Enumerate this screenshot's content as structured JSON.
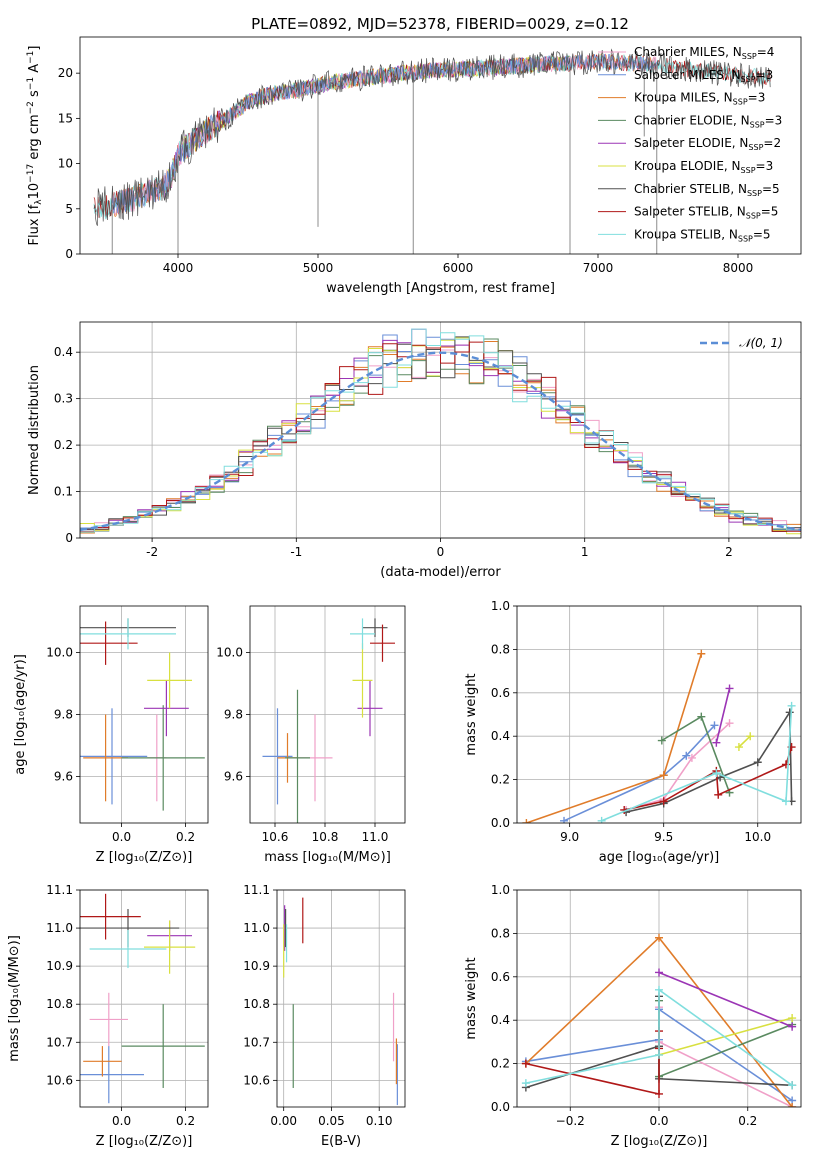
{
  "figure": {
    "title": "PLATE=0892, MJD=52378, FIBERID=0029, z=0.12",
    "colors": {
      "Chabrier MILES": "#f0a0c8",
      "Salpeter MILES": "#6a8fd8",
      "Kroupa MILES": "#e07c2a",
      "Chabrier ELODIE": "#5a8a60",
      "Salpeter ELODIE": "#9b35b5",
      "Kroupa ELODIE": "#d8e040",
      "Chabrier STELIB": "#505050",
      "Salpeter STELIB": "#b01818",
      "Kroupa STELIB": "#80dede"
    }
  },
  "chart_data": [
    {
      "id": "spectrum",
      "type": "line",
      "xlabel": "wavelength [Angstrom, rest frame]",
      "ylabel": "Flux [f",
      "ylabel_parts": [
        "Flux [f",
        "λ",
        "10",
        "−17",
        " erg cm",
        "−2",
        " s",
        "−1",
        " A",
        "−1",
        "]"
      ],
      "xlim": [
        3300,
        8450
      ],
      "ylim": [
        0,
        24
      ],
      "xticks": [
        4000,
        5000,
        6000,
        7000,
        8000
      ],
      "yticks": [
        0,
        5,
        10,
        15,
        20
      ],
      "grid": false,
      "legend_position": "right",
      "legend": [
        {
          "model": "Chabrier MILES",
          "label": "Chabrier MILES, N",
          "sub": "SSP",
          "suffix": "=4"
        },
        {
          "model": "Salpeter MILES",
          "label": "Salpeter MILES, N",
          "sub": "SSP",
          "suffix": "=3"
        },
        {
          "model": "Kroupa MILES",
          "label": "Kroupa MILES, N",
          "sub": "SSP",
          "suffix": "=3"
        },
        {
          "model": "Chabrier ELODIE",
          "label": "Chabrier ELODIE, N",
          "sub": "SSP",
          "suffix": "=3"
        },
        {
          "model": "Salpeter ELODIE",
          "label": "Salpeter ELODIE, N",
          "sub": "SSP",
          "suffix": "=2"
        },
        {
          "model": "Kroupa ELODIE",
          "label": "Kroupa ELODIE, N",
          "sub": "SSP",
          "suffix": "=3"
        },
        {
          "model": "Chabrier STELIB",
          "label": "Chabrier STELIB, N",
          "sub": "SSP",
          "suffix": "=5"
        },
        {
          "model": "Salpeter STELIB",
          "label": "Salpeter STELIB, N",
          "sub": "SSP",
          "suffix": "=5"
        },
        {
          "model": "Kroupa STELIB",
          "label": "Kroupa STELIB, N",
          "sub": "SSP",
          "suffix": "=5"
        }
      ],
      "continuum": [
        [
          3400,
          5.2
        ],
        [
          3500,
          5.3
        ],
        [
          3600,
          5.8
        ],
        [
          3700,
          6.2
        ],
        [
          3800,
          6.8
        ],
        [
          3900,
          7.4
        ],
        [
          3950,
          8.5
        ],
        [
          4000,
          11.0
        ],
        [
          4100,
          12.4
        ],
        [
          4200,
          13.6
        ],
        [
          4300,
          14.6
        ],
        [
          4400,
          15.6
        ],
        [
          4500,
          16.8
        ],
        [
          4600,
          17.4
        ],
        [
          4700,
          17.8
        ],
        [
          4800,
          18.0
        ],
        [
          4900,
          18.3
        ],
        [
          5000,
          18.6
        ],
        [
          5100,
          19.0
        ],
        [
          5200,
          19.2
        ],
        [
          5300,
          19.4
        ],
        [
          5400,
          19.6
        ],
        [
          5500,
          19.8
        ],
        [
          5600,
          20.0
        ],
        [
          5800,
          20.3
        ],
        [
          6000,
          20.4
        ],
        [
          6200,
          20.6
        ],
        [
          6400,
          20.8
        ],
        [
          6600,
          21.0
        ],
        [
          6800,
          21.1
        ],
        [
          7000,
          21.3
        ],
        [
          7200,
          21.1
        ],
        [
          7400,
          21.0
        ],
        [
          7600,
          20.5
        ],
        [
          7800,
          20.1
        ],
        [
          8000,
          19.8
        ],
        [
          8200,
          19.5
        ]
      ],
      "spikes": [
        [
          3530,
          0
        ],
        [
          4000,
          0
        ],
        [
          5000,
          3
        ],
        [
          5680,
          0
        ],
        [
          6800,
          0
        ],
        [
          7420,
          0
        ],
        [
          7330,
          13
        ]
      ]
    },
    {
      "id": "residuals",
      "type": "histogram",
      "xlabel": "(data-model)/error",
      "ylabel": "Normed distribution",
      "xlim": [
        -2.5,
        2.5
      ],
      "ylim": [
        0,
        0.465
      ],
      "xticks": [
        -2,
        -1,
        0,
        1,
        2
      ],
      "yticks": [
        0.0,
        0.1,
        0.2,
        0.3,
        0.4
      ],
      "grid": true,
      "legend_position": "top-right",
      "reference_label": "𝒩(0, 1)",
      "bins": 50
    },
    {
      "id": "age_vs_Z",
      "type": "scatter",
      "xlabel": "Z [log₁₀(Z/Z⊙)]",
      "ylabel": "age  [log₁₀(age/yr)]",
      "xlim": [
        -0.13,
        0.27
      ],
      "ylim": [
        9.45,
        10.15
      ],
      "xticks": [
        0.0,
        0.2
      ],
      "xticklabels": [
        "0.0",
        "0.2"
      ],
      "yticks": [
        9.6,
        9.8,
        10.0
      ],
      "yticklabels": [
        "9.6",
        "9.8",
        "10.0"
      ],
      "grid": true,
      "points": [
        {
          "model": "Chabrier MILES",
          "x": 0.11,
          "y": 9.66,
          "xe": 0.03,
          "ye": 0.14
        },
        {
          "model": "Salpeter MILES",
          "x": -0.03,
          "y": 9.665,
          "xe": 0.11,
          "ye": 0.155
        },
        {
          "model": "Kroupa MILES",
          "x": -0.05,
          "y": 9.66,
          "xe": 0.07,
          "ye": 0.14
        },
        {
          "model": "Chabrier ELODIE",
          "x": 0.13,
          "y": 9.66,
          "xe": 0.13,
          "ye": 0.17
        },
        {
          "model": "Salpeter ELODIE",
          "x": 0.14,
          "y": 9.82,
          "xe": 0.07,
          "ye": 0.09
        },
        {
          "model": "Kroupa ELODIE",
          "x": 0.15,
          "y": 9.91,
          "xe": 0.07,
          "ye": 0.09
        },
        {
          "model": "Chabrier STELIB",
          "x": 0.02,
          "y": 10.08,
          "xe": 0.15,
          "ye": 0.03
        },
        {
          "model": "Salpeter STELIB",
          "x": -0.05,
          "y": 10.03,
          "xe": 0.1,
          "ye": 0.07
        },
        {
          "model": "Kroupa STELIB",
          "x": 0.02,
          "y": 10.06,
          "xe": 0.15,
          "ye": 0.05
        }
      ]
    },
    {
      "id": "age_vs_mass",
      "type": "scatter",
      "xlabel": "mass [log₁₀(M/M⊙)]",
      "ylabel": "",
      "xlim": [
        10.5,
        11.12
      ],
      "ylim": [
        9.45,
        10.15
      ],
      "xticks": [
        10.6,
        10.8,
        11.0
      ],
      "xticklabels": [
        "10.6",
        "10.8",
        "11.0"
      ],
      "yticks": [
        9.6,
        9.8,
        10.0
      ],
      "yticklabels": [
        "9.6",
        "9.8",
        "10.0"
      ],
      "grid": true,
      "points": [
        {
          "model": "Chabrier MILES",
          "x": 10.76,
          "y": 9.66,
          "xe": 0.07,
          "ye": 0.14
        },
        {
          "model": "Salpeter MILES",
          "x": 10.61,
          "y": 9.665,
          "xe": 0.06,
          "ye": 0.155
        },
        {
          "model": "Kroupa MILES",
          "x": 10.65,
          "y": 9.66,
          "xe": 0.04,
          "ye": 0.08
        },
        {
          "model": "Chabrier ELODIE",
          "x": 10.69,
          "y": 9.66,
          "xe": 0.05,
          "ye": 0.22
        },
        {
          "model": "Salpeter ELODIE",
          "x": 10.98,
          "y": 9.82,
          "xe": 0.05,
          "ye": 0.09
        },
        {
          "model": "Kroupa ELODIE",
          "x": 10.95,
          "y": 9.91,
          "xe": 0.04,
          "ye": 0.12
        },
        {
          "model": "Chabrier STELIB",
          "x": 11.0,
          "y": 10.08,
          "xe": 0.05,
          "ye": 0.03
        },
        {
          "model": "Salpeter STELIB",
          "x": 11.03,
          "y": 10.03,
          "xe": 0.05,
          "ye": 0.06
        },
        {
          "model": "Kroupa STELIB",
          "x": 10.95,
          "y": 10.06,
          "xe": 0.05,
          "ye": 0.05
        }
      ]
    },
    {
      "id": "mass_weight_vs_age",
      "type": "line",
      "xlabel": "age  [log₁₀(age/yr)]",
      "ylabel": "mass weight",
      "xlim": [
        8.72,
        10.23
      ],
      "ylim": [
        0,
        1
      ],
      "xticks": [
        9.0,
        9.5,
        10.0
      ],
      "xticklabels": [
        "9.0",
        "9.5",
        "10.0"
      ],
      "yticks": [
        0.0,
        0.2,
        0.4,
        0.6,
        0.8,
        1.0
      ],
      "yticklabels": [
        "0.0",
        "0.2",
        "0.4",
        "0.6",
        "0.8",
        "1.0"
      ],
      "grid": true,
      "series": [
        {
          "model": "Chabrier MILES",
          "x": [
            9.3,
            9.5,
            9.65,
            9.85
          ],
          "y": [
            0.06,
            0.11,
            0.3,
            0.46
          ]
        },
        {
          "model": "Salpeter MILES",
          "x": [
            8.97,
            9.5,
            9.62,
            9.77
          ],
          "y": [
            0.01,
            0.22,
            0.31,
            0.45
          ]
        },
        {
          "model": "Kroupa MILES",
          "x": [
            8.77,
            9.5,
            9.7
          ],
          "y": [
            0.0,
            0.22,
            0.78
          ]
        },
        {
          "model": "Chabrier ELODIE",
          "x": [
            9.49,
            9.7,
            9.85
          ],
          "y": [
            0.38,
            0.49,
            0.14
          ]
        },
        {
          "model": "Salpeter ELODIE",
          "x": [
            9.78,
            9.85
          ],
          "y": [
            0.37,
            0.62
          ]
        },
        {
          "model": "Kroupa ELODIE",
          "x": [
            9.9,
            9.96
          ],
          "y": [
            0.35,
            0.4
          ]
        },
        {
          "model": "Chabrier STELIB",
          "x": [
            9.3,
            9.5,
            9.8,
            10.0,
            10.17,
            10.18
          ],
          "y": [
            0.05,
            0.09,
            0.21,
            0.28,
            0.51,
            0.1
          ]
        },
        {
          "model": "Salpeter STELIB",
          "x": [
            9.29,
            9.5,
            9.78,
            9.79,
            10.15,
            10.18
          ],
          "y": [
            0.06,
            0.1,
            0.24,
            0.13,
            0.27,
            0.35
          ]
        },
        {
          "model": "Kroupa STELIB",
          "x": [
            9.17,
            9.78,
            10.15,
            10.18
          ],
          "y": [
            0.01,
            0.23,
            0.1,
            0.54
          ]
        }
      ]
    },
    {
      "id": "mass_vs_Z",
      "type": "scatter",
      "xlabel": "Z [log₁₀(Z/Z⊙)]",
      "ylabel": "mass [log₁₀(M/M⊙)]",
      "xlim": [
        -0.13,
        0.27
      ],
      "ylim": [
        10.53,
        11.1
      ],
      "xticks": [
        0.0,
        0.2
      ],
      "xticklabels": [
        "0.0",
        "0.2"
      ],
      "yticks": [
        10.6,
        10.7,
        10.8,
        10.9,
        11.0,
        11.1
      ],
      "yticklabels": [
        "10.6",
        "10.7",
        "10.8",
        "10.9",
        "11.0",
        "11.1"
      ],
      "grid": true,
      "points": [
        {
          "model": "Chabrier MILES",
          "x": -0.04,
          "y": 10.76,
          "xe": 0.06,
          "ye": 0.07
        },
        {
          "model": "Salpeter MILES",
          "x": -0.04,
          "y": 10.615,
          "xe": 0.11,
          "ye": 0.075
        },
        {
          "model": "Kroupa MILES",
          "x": -0.06,
          "y": 10.65,
          "xe": 0.06,
          "ye": 0.04
        },
        {
          "model": "Chabrier ELODIE",
          "x": 0.13,
          "y": 10.69,
          "xe": 0.13,
          "ye": 0.11
        },
        {
          "model": "Salpeter ELODIE",
          "x": 0.15,
          "y": 10.98,
          "xe": 0.07,
          "ye": 0.04
        },
        {
          "model": "Kroupa ELODIE",
          "x": 0.15,
          "y": 10.95,
          "xe": 0.08,
          "ye": 0.07
        },
        {
          "model": "Chabrier STELIB",
          "x": 0.02,
          "y": 11.0,
          "xe": 0.16,
          "ye": 0.05
        },
        {
          "model": "Salpeter STELIB",
          "x": -0.05,
          "y": 11.03,
          "xe": 0.11,
          "ye": 0.06
        },
        {
          "model": "Kroupa STELIB",
          "x": 0.02,
          "y": 10.945,
          "xe": 0.12,
          "ye": 0.05
        }
      ]
    },
    {
      "id": "mass_vs_ebv",
      "type": "scatter",
      "xlabel": "E(B-V)",
      "ylabel": "",
      "xlim": [
        -0.007,
        0.127
      ],
      "ylim": [
        10.53,
        11.1
      ],
      "xticks": [
        0.0,
        0.05,
        0.1
      ],
      "xticklabels": [
        "0.00",
        "0.05",
        "0.10"
      ],
      "yticks": [
        10.6,
        10.7,
        10.8,
        10.9,
        11.0,
        11.1
      ],
      "yticklabels": [
        "10.6",
        "10.7",
        "10.8",
        "10.9",
        "11.0",
        "11.1"
      ],
      "grid": true,
      "points": [
        {
          "model": "Chabrier MILES",
          "x": 0.115,
          "y": 10.74,
          "xe": 0,
          "ye": 0.09
        },
        {
          "model": "Salpeter MILES",
          "x": 0.119,
          "y": 10.615,
          "xe": 0,
          "ye": 0.08
        },
        {
          "model": "Kroupa MILES",
          "x": 0.118,
          "y": 10.65,
          "xe": 0,
          "ye": 0.06
        },
        {
          "model": "Chabrier ELODIE",
          "x": 0.01,
          "y": 10.69,
          "xe": 0,
          "ye": 0.11
        },
        {
          "model": "Salpeter ELODIE",
          "x": 0.001,
          "y": 11.0,
          "xe": 0,
          "ye": 0.06
        },
        {
          "model": "Kroupa ELODIE",
          "x": 0.0,
          "y": 10.94,
          "xe": 0,
          "ye": 0.07
        },
        {
          "model": "Chabrier STELIB",
          "x": 0.002,
          "y": 11.0,
          "xe": 0,
          "ye": 0.05
        },
        {
          "model": "Salpeter STELIB",
          "x": 0.02,
          "y": 11.02,
          "xe": 0,
          "ye": 0.06
        },
        {
          "model": "Kroupa STELIB",
          "x": 0.003,
          "y": 10.96,
          "xe": 0,
          "ye": 0.05
        }
      ]
    },
    {
      "id": "mass_weight_vs_Z",
      "type": "line",
      "xlabel": "Z [log₁₀(Z/Z⊙)]",
      "ylabel": "mass weight",
      "xlim": [
        -0.32,
        0.32
      ],
      "ylim": [
        0,
        1
      ],
      "xticks": [
        -0.2,
        0.0,
        0.2
      ],
      "xticklabels": [
        "−0.2",
        "0.0",
        "0.2"
      ],
      "yticks": [
        0.0,
        0.2,
        0.4,
        0.6,
        0.8,
        1.0
      ],
      "yticklabels": [
        "0.0",
        "0.2",
        "0.4",
        "0.6",
        "0.8",
        "1.0"
      ],
      "grid": true,
      "series": [
        {
          "model": "Chabrier MILES",
          "x": [
            0.0,
            0.0,
            0.3
          ],
          "y": [
            0.46,
            0.3,
            0.0
          ]
        },
        {
          "model": "Salpeter MILES",
          "x": [
            -0.3,
            0.0,
            0.0,
            0.3
          ],
          "y": [
            0.21,
            0.31,
            0.45,
            0.03
          ]
        },
        {
          "model": "Kroupa MILES",
          "x": [
            -0.3,
            0.0,
            0.3
          ],
          "y": [
            0.2,
            0.78,
            0.0
          ]
        },
        {
          "model": "Chabrier ELODIE",
          "x": [
            0.0,
            0.0,
            0.3
          ],
          "y": [
            0.49,
            0.14,
            0.38
          ]
        },
        {
          "model": "Salpeter ELODIE",
          "x": [
            0.0,
            0.3
          ],
          "y": [
            0.62,
            0.37
          ]
        },
        {
          "model": "Kroupa ELODIE",
          "x": [
            0.0,
            0.3
          ],
          "y": [
            0.24,
            0.41
          ]
        },
        {
          "model": "Chabrier STELIB",
          "x": [
            -0.3,
            0.0,
            0.0,
            0.0,
            0.3
          ],
          "y": [
            0.09,
            0.28,
            0.51,
            0.13,
            0.1
          ]
        },
        {
          "model": "Salpeter STELIB",
          "x": [
            -0.3,
            0.0,
            0.0,
            0.0
          ],
          "y": [
            0.2,
            0.06,
            0.27,
            0.35
          ]
        },
        {
          "model": "Kroupa STELIB",
          "x": [
            -0.3,
            0.0,
            0.0,
            0.3
          ],
          "y": [
            0.11,
            0.24,
            0.54,
            0.1
          ]
        }
      ]
    }
  ]
}
